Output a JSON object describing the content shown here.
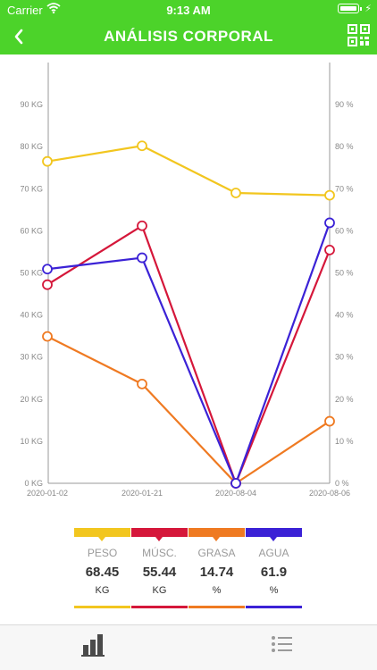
{
  "status_bar": {
    "carrier": "Carrier",
    "time": "9:13 AM"
  },
  "header": {
    "title": "ANÁLISIS CORPORAL",
    "back_icon": "chevron-left-icon",
    "action_icon": "qr-code-icon"
  },
  "colors": {
    "accent": "#4cd32a",
    "peso": "#f2c61f",
    "musc": "#d5173a",
    "grasa": "#ef7a22",
    "agua": "#3b22d6"
  },
  "chart_data": {
    "type": "line",
    "x": [
      "2020-01-02",
      "2020-01-21",
      "2020-08-04",
      "2020-08-06"
    ],
    "left_axis": {
      "ticks": [
        "0 KG",
        "10 KG",
        "20 KG",
        "30 KG",
        "40 KG",
        "50 KG",
        "60 KG",
        "70 KG",
        "80 KG",
        "90 KG"
      ],
      "ylim": [
        0,
        100
      ]
    },
    "right_axis": {
      "ticks": [
        "0 %",
        "10 %",
        "20 %",
        "30 %",
        "40 %",
        "50 %",
        "60 %",
        "70 %",
        "80 %",
        "90 %"
      ],
      "ylim": [
        0,
        100
      ]
    },
    "grid": false,
    "series": [
      {
        "name": "PESO",
        "key": "peso",
        "values": [
          76.5,
          80.2,
          69.0,
          68.45
        ]
      },
      {
        "name": "MÚSC.",
        "key": "musc",
        "values": [
          47.2,
          61.2,
          0,
          55.44
        ]
      },
      {
        "name": "GRASA",
        "key": "grasa",
        "values": [
          34.9,
          23.6,
          0,
          14.74
        ]
      },
      {
        "name": "AGUA",
        "key": "agua",
        "values": [
          50.9,
          53.6,
          0,
          61.9
        ]
      }
    ]
  },
  "legend": [
    {
      "name": "PESO",
      "value": "68.45",
      "unit": "KG"
    },
    {
      "name": "MÚSC.",
      "value": "55.44",
      "unit": "KG"
    },
    {
      "name": "GRASA",
      "value": "14.74",
      "unit": "%"
    },
    {
      "name": "AGUA",
      "value": "61.9",
      "unit": "%"
    }
  ],
  "tabbar": {
    "items": [
      {
        "icon": "bar-chart-icon",
        "active": true
      },
      {
        "icon": "list-icon",
        "active": false
      }
    ]
  }
}
